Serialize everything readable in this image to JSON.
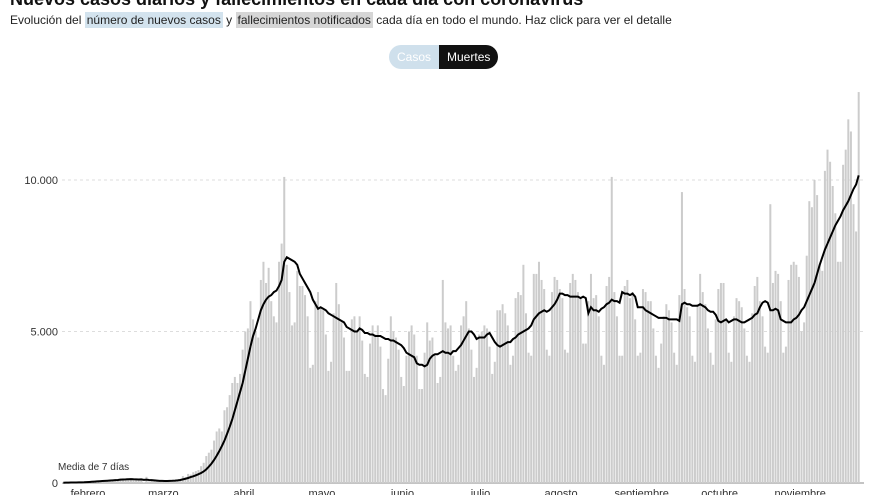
{
  "header": {
    "title": "Nuevos casos diarios y fallecimientos en cada día con coronavirus",
    "subtitle_parts": [
      "Evolución del",
      "número de nuevos casos",
      "y",
      "fallecimientos notificados",
      "cada día en todo el mundo. Haz click para ver el detalle"
    ],
    "toggle": [
      "Casos",
      "Muertes"
    ]
  },
  "chart_data": {
    "type": "bar",
    "categories": [
      null,
      null,
      null,
      null,
      null,
      null,
      null,
      null,
      null,
      null,
      "febrero",
      null,
      null,
      null,
      null,
      null,
      null,
      null,
      null,
      null,
      null,
      null,
      null,
      null,
      null,
      null,
      null,
      null,
      null,
      null,
      null,
      null,
      null,
      null,
      null,
      null,
      null,
      null,
      null,
      "marzo",
      null,
      null,
      null,
      null,
      null,
      null,
      null,
      null,
      null,
      null,
      null,
      null,
      null,
      null,
      null,
      null,
      null,
      null,
      null,
      null,
      null,
      null,
      null,
      null,
      null,
      null,
      null,
      null,
      null,
      null,
      "abril",
      null,
      null,
      null,
      null,
      null,
      null,
      null,
      null,
      null,
      null,
      null,
      null,
      null,
      null,
      null,
      null,
      null,
      null,
      null,
      null,
      null,
      null,
      null,
      null,
      null,
      null,
      null,
      null,
      null,
      "mayo",
      null,
      null,
      null,
      null,
      null,
      null,
      null,
      null,
      null,
      null,
      null,
      null,
      null,
      null,
      null,
      null,
      null,
      null,
      null,
      null,
      null,
      null,
      null,
      null,
      null,
      null,
      null,
      null,
      null,
      null,
      "junio",
      null,
      null,
      null,
      null,
      null,
      null,
      null,
      null,
      null,
      null,
      null,
      null,
      null,
      null,
      null,
      null,
      null,
      null,
      null,
      null,
      null,
      null,
      null,
      null,
      null,
      null,
      null,
      null,
      null,
      "julio",
      null,
      null,
      null,
      null,
      null,
      null,
      null,
      null,
      null,
      null,
      null,
      null,
      null,
      null,
      null,
      null,
      null,
      null,
      null,
      null,
      null,
      null,
      null,
      null,
      null,
      null,
      null,
      null,
      null,
      null,
      "agosto",
      null,
      null,
      null,
      null,
      null,
      null,
      null,
      null,
      null,
      null,
      null,
      null,
      null,
      null,
      null,
      null,
      null,
      null,
      null,
      null,
      null,
      null,
      null,
      null,
      null,
      null,
      null,
      null,
      null,
      null,
      "septiembre",
      null,
      null,
      null,
      null,
      null,
      null,
      null,
      null,
      null,
      null,
      null,
      null,
      null,
      null,
      null,
      null,
      null,
      null,
      null,
      null,
      null,
      null,
      null,
      null,
      null,
      null,
      null,
      null,
      null,
      "octubre",
      null,
      null,
      null,
      null,
      null,
      null,
      null,
      null,
      null,
      null,
      null,
      null,
      null,
      null,
      null,
      null,
      null,
      null,
      null,
      null,
      null,
      null,
      null,
      null,
      null,
      null,
      null,
      null,
      null,
      null,
      "noviembre",
      null,
      null,
      null,
      null,
      null,
      null,
      null,
      null,
      null,
      null,
      null,
      null,
      null,
      null,
      null,
      null,
      null,
      null,
      null,
      null,
      null,
      null
    ],
    "series": [
      {
        "color": "#cccccc",
        "values": [
          17,
          1,
          8,
          16,
          14,
          26,
          26,
          2,
          38,
          43,
          46,
          45,
          57,
          64,
          66,
          72,
          73,
          86,
          89,
          97,
          108,
          97,
          146,
          121,
          143,
          142,
          106,
          98,
          139,
          116,
          119,
          12,
          203,
          51,
          75,
          69,
          83,
          57,
          64,
          56,
          69,
          66,
          103,
          103,
          120,
          107,
          229,
          191,
          300,
          278,
          355,
          392,
          428,
          555,
          667,
          889,
          1000,
          1100,
          1400,
          1700,
          1800,
          1700,
          2400,
          2500,
          2900,
          3300,
          3500,
          3300,
          3600,
          4400,
          5000,
          5100,
          6000,
          5400,
          5000,
          4800,
          6700,
          7300,
          6600,
          7100,
          6000,
          5500,
          5300,
          7300,
          7900,
          10100,
          7200,
          6300,
          5200,
          5300,
          7000,
          6500,
          6500,
          6200,
          5500,
          3800,
          3900,
          6000,
          6300,
          5800,
          5700,
          4900,
          3700,
          4000,
          5600,
          6600,
          5900,
          5300,
          4800,
          3700,
          3700,
          5400,
          5500,
          5000,
          5500,
          4700,
          3600,
          3500,
          4600,
          5200,
          4900,
          5200,
          4500,
          3100,
          2900,
          4100,
          5500,
          5000,
          4800,
          4400,
          3500,
          3200,
          4200,
          5000,
          5200,
          4900,
          4200,
          3100,
          3100,
          4300,
          5300,
          4700,
          4800,
          4200,
          3300,
          3500,
          6700,
          5300,
          5100,
          5200,
          4200,
          3700,
          3900,
          5200,
          5500,
          6000,
          5100,
          4400,
          3500,
          3800,
          4900,
          5000,
          5200,
          5100,
          4500,
          3600,
          4000,
          5700,
          5700,
          5900,
          5600,
          5200,
          3900,
          4200,
          6100,
          6300,
          6200,
          7200,
          5600,
          4300,
          4200,
          6900,
          6900,
          7300,
          6700,
          6400,
          4400,
          4200,
          6300,
          6800,
          6700,
          6400,
          6100,
          4400,
          4300,
          6600,
          6900,
          6700,
          6300,
          6100,
          4600,
          4600,
          6000,
          6900,
          6100,
          6200,
          5500,
          4200,
          3900,
          6500,
          6800,
          10100,
          6300,
          5500,
          4200,
          4200,
          6500,
          6700,
          6100,
          6300,
          5400,
          4200,
          4300,
          6400,
          6300,
          6000,
          6000,
          5100,
          4200,
          3800,
          4600,
          5500,
          5900,
          5700,
          5300,
          4300,
          3900,
          6200,
          9600,
          6400,
          5800,
          5500,
          4200,
          4000,
          5900,
          6900,
          6300,
          5900,
          5100,
          4300,
          3900,
          5400,
          6400,
          6600,
          6600,
          5400,
          4300,
          4000,
          5500,
          6100,
          6000,
          5800,
          5100,
          4200,
          4000,
          5600,
          6500,
          6800,
          6000,
          5500,
          4500,
          4300,
          9200,
          6600,
          7000,
          6900,
          6000,
          4300,
          4500,
          6700,
          7200,
          7300,
          7200,
          6800,
          5000,
          5300,
          7500,
          9300,
          9100,
          10000,
          9500,
          7200,
          7000,
          10300,
          11000,
          10600,
          9800,
          8900,
          7300,
          7300,
          10500,
          11000,
          12000,
          11600,
          9200,
          8300,
          12900
        ]
      },
      {
        "name": "Media de 7 días",
        "type": "line",
        "color": "#000000",
        "values": [
          10,
          12,
          14,
          15,
          17,
          18,
          20,
          21,
          24,
          30,
          35,
          40,
          46,
          52,
          58,
          64,
          70,
          76,
          82,
          88,
          95,
          100,
          110,
          115,
          118,
          125,
          128,
          122,
          120,
          115,
          118,
          105,
          110,
          100,
          95,
          88,
          80,
          72,
          70,
          68,
          66,
          70,
          74,
          80,
          88,
          100,
          120,
          140,
          165,
          195,
          220,
          255,
          290,
          330,
          380,
          450,
          540,
          640,
          760,
          900,
          1050,
          1220,
          1400,
          1620,
          1850,
          2100,
          2400,
          2700,
          3000,
          3300,
          3700,
          4100,
          4500,
          4850,
          5100,
          5400,
          5700,
          5900,
          6050,
          6150,
          6200,
          6300,
          6350,
          6500,
          6700,
          7300,
          7450,
          7400,
          7350,
          7300,
          7200,
          6900,
          6750,
          6600,
          6450,
          6300,
          6050,
          5900,
          5750,
          5800,
          5750,
          5700,
          5600,
          5550,
          5500,
          5450,
          5400,
          5350,
          5300,
          5150,
          5100,
          5050,
          5000,
          5000,
          5100,
          5050,
          4950,
          4950,
          4900,
          4900,
          4850,
          4850,
          4850,
          4800,
          4750,
          4750,
          4700,
          4700,
          4650,
          4600,
          4550,
          4450,
          4300,
          4250,
          4200,
          4150,
          3950,
          3900,
          3900,
          3850,
          3900,
          4100,
          4200,
          4250,
          4250,
          4300,
          4350,
          4300,
          4300,
          4250,
          4350,
          4350,
          4450,
          4550,
          4700,
          4850,
          5000,
          5000,
          4900,
          4750,
          4800,
          4800,
          4800,
          4900,
          4950,
          4800,
          4650,
          4550,
          4500,
          4550,
          4600,
          4650,
          4650,
          4750,
          4800,
          4900,
          4950,
          5000,
          5050,
          5100,
          5200,
          5400,
          5500,
          5600,
          5650,
          5700,
          5650,
          5700,
          5800,
          5900,
          6050,
          6250,
          6250,
          6200,
          6200,
          6150,
          6150,
          6150,
          6150,
          6100,
          6150,
          6100,
          5600,
          5800,
          5700,
          5700,
          5650,
          5750,
          5800,
          5900,
          5950,
          6050,
          6000,
          6000,
          5950,
          6300,
          6250,
          6250,
          6200,
          6250,
          6150,
          5800,
          5800,
          5800,
          5700,
          5650,
          5600,
          5550,
          5500,
          5450,
          5450,
          5450,
          5450,
          5400,
          5400,
          5400,
          5400,
          5350,
          5900,
          5950,
          5900,
          5900,
          5850,
          5850,
          5850,
          5900,
          5850,
          5800,
          5700,
          5650,
          5650,
          5550,
          5350,
          5300,
          5350,
          5400,
          5300,
          5350,
          5400,
          5400,
          5350,
          5300,
          5300,
          5350,
          5400,
          5450,
          5550,
          5600,
          5800,
          5950,
          6000,
          5950,
          5700,
          5700,
          5750,
          5700,
          5400,
          5350,
          5300,
          5300,
          5300,
          5400,
          5450,
          5550,
          5700,
          5800,
          6000,
          6200,
          6400,
          6600,
          6900,
          7200,
          7450,
          7700,
          7900,
          8100,
          8300,
          8500,
          8650,
          8800,
          9000,
          9150,
          9300,
          9500,
          9700,
          9850,
          10150
        ]
      }
    ],
    "ylim": [
      0,
      13100
    ],
    "yticks": [
      0,
      {
        "value": 5000,
        "label": "5.000"
      },
      {
        "value": 10000,
        "label": "10.000"
      }
    ],
    "grid": true
  }
}
